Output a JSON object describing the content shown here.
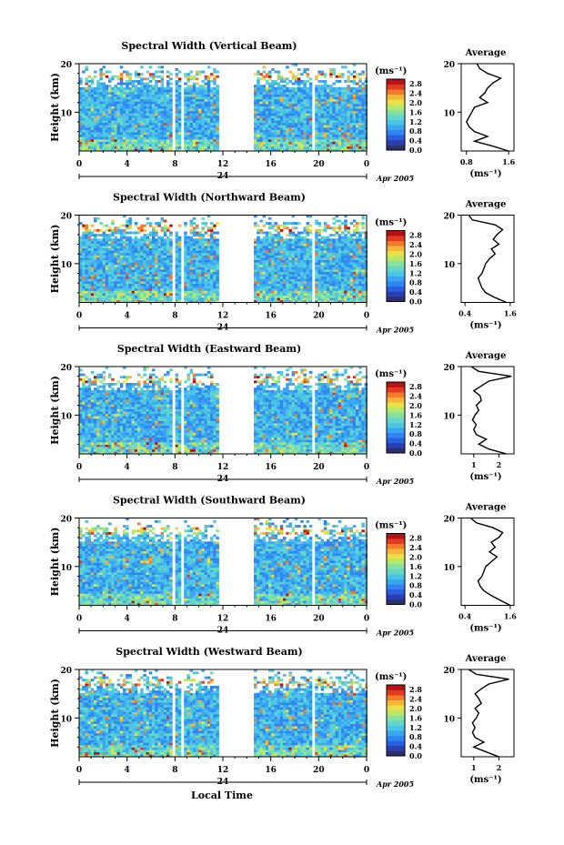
{
  "figure": {
    "xlabel_bottom": "Local Time",
    "cbar_unit": "(ms⁻¹)",
    "avg_unit": "(ms⁻¹)",
    "colors": [
      "#2b2f6e",
      "#2b3fb0",
      "#2a5fe0",
      "#2f86f2",
      "#3aa6f2",
      "#4cc4e6",
      "#63d8c8",
      "#86e0a0",
      "#b6e86e",
      "#e8e24a",
      "#f7b63a",
      "#f57a2a",
      "#e23a1e",
      "#b51212"
    ]
  },
  "chart_data": [
    {
      "type": "heatmap",
      "title": "Spectral Width (Vertical Beam)",
      "ylabel": "Height (km)",
      "x_ticks": [
        "0",
        "4",
        "8",
        "12",
        "16",
        "20",
        "0"
      ],
      "y_ticks": [
        "20",
        "10"
      ],
      "date_marker": "24",
      "date_label": "Apr 2005",
      "xlim": [
        0,
        24
      ],
      "ylim": [
        2,
        20
      ],
      "gaps": [
        [
          7.7,
          7.9
        ],
        [
          8.5,
          8.7
        ],
        [
          11.5,
          14.5
        ],
        [
          19.4,
          19.6
        ],
        [
          20.2,
          20.4
        ]
      ],
      "colorbar": {
        "ticks": [
          "2.8",
          "2.4",
          "2.0",
          "1.6",
          "1.2",
          "0.8",
          "0.4",
          "0.0"
        ],
        "range": [
          0,
          3.0
        ]
      },
      "average": {
        "title": "Average",
        "xticks": [
          "0.8",
          "1.6"
        ],
        "xlim": [
          0.7,
          1.7
        ],
        "yticks": [
          "20",
          "10"
        ],
        "profile": [
          [
            2,
            1.6
          ],
          [
            3,
            1.3
          ],
          [
            4,
            0.95
          ],
          [
            5,
            1.2
          ],
          [
            6,
            0.95
          ],
          [
            7,
            0.85
          ],
          [
            8,
            0.8
          ],
          [
            9,
            0.85
          ],
          [
            10,
            0.9
          ],
          [
            11,
            0.95
          ],
          [
            12,
            1.2
          ],
          [
            13,
            1.05
          ],
          [
            14,
            1.15
          ],
          [
            15,
            1.2
          ],
          [
            16,
            1.3
          ],
          [
            17,
            1.45
          ],
          [
            18,
            1.2
          ],
          [
            19,
            1.05
          ],
          [
            20,
            1.0
          ]
        ]
      }
    },
    {
      "type": "heatmap",
      "title": "Spectral Width (Northward Beam)",
      "ylabel": "Height (km)",
      "x_ticks": [
        "0",
        "4",
        "8",
        "12",
        "16",
        "20",
        "0"
      ],
      "y_ticks": [
        "20",
        "10"
      ],
      "date_marker": "24",
      "date_label": "Apr 2005",
      "xlim": [
        0,
        24
      ],
      "ylim": [
        2,
        20
      ],
      "gaps": [
        [
          7.7,
          7.9
        ],
        [
          8.5,
          8.7
        ],
        [
          11.5,
          14.5
        ],
        [
          19.4,
          19.6
        ],
        [
          20.2,
          20.4
        ]
      ],
      "colorbar": {
        "ticks": [
          "2.8",
          "2.4",
          "2.0",
          "1.6",
          "1.2",
          "0.8",
          "0.4",
          "0.0"
        ],
        "range": [
          0,
          3.0
        ]
      },
      "average": {
        "title": "Average",
        "xticks": [
          "0.4",
          "1.6"
        ],
        "xlim": [
          0.3,
          1.7
        ],
        "yticks": [
          "20",
          "10"
        ],
        "profile": [
          [
            2,
            1.5
          ],
          [
            3,
            1.2
          ],
          [
            4,
            0.95
          ],
          [
            5,
            0.85
          ],
          [
            6,
            0.8
          ],
          [
            7,
            0.75
          ],
          [
            8,
            0.85
          ],
          [
            9,
            0.9
          ],
          [
            10,
            0.95
          ],
          [
            11,
            1.05
          ],
          [
            12,
            1.2
          ],
          [
            13,
            1.1
          ],
          [
            14,
            1.3
          ],
          [
            15,
            1.15
          ],
          [
            16,
            1.25
          ],
          [
            17,
            1.4
          ],
          [
            18,
            1.2
          ],
          [
            19,
            0.6
          ],
          [
            20,
            0.5
          ]
        ]
      }
    },
    {
      "type": "heatmap",
      "title": "Spectral Width (Eastward Beam)",
      "ylabel": "Height (km)",
      "x_ticks": [
        "0",
        "4",
        "8",
        "12",
        "16",
        "20",
        "0"
      ],
      "y_ticks": [
        "20",
        "10"
      ],
      "date_marker": "24",
      "date_label": "Apr 2005",
      "xlim": [
        0,
        24
      ],
      "ylim": [
        2,
        20
      ],
      "gaps": [
        [
          7.7,
          7.9
        ],
        [
          8.5,
          8.7
        ],
        [
          11.5,
          14.5
        ],
        [
          19.4,
          19.6
        ],
        [
          20.2,
          20.4
        ]
      ],
      "colorbar": {
        "ticks": [
          "2.8",
          "2.4",
          "2.0",
          "1.6",
          "1.2",
          "0.8",
          "0.4",
          "0.0"
        ],
        "range": [
          0,
          3.0
        ]
      },
      "average": {
        "title": "Average",
        "xticks": [
          "1",
          "2"
        ],
        "xlim": [
          0.5,
          2.6
        ],
        "yticks": [
          "20",
          "10"
        ],
        "profile": [
          [
            2,
            2.3
          ],
          [
            3,
            1.6
          ],
          [
            4,
            1.2
          ],
          [
            5,
            1.5
          ],
          [
            6,
            1.1
          ],
          [
            7,
            1.0
          ],
          [
            8,
            1.1
          ],
          [
            9,
            0.95
          ],
          [
            10,
            1.05
          ],
          [
            11,
            1.2
          ],
          [
            12,
            1.1
          ],
          [
            13,
            1.3
          ],
          [
            14,
            1.25
          ],
          [
            15,
            1.0
          ],
          [
            16,
            1.3
          ],
          [
            17,
            1.6
          ],
          [
            18,
            2.5
          ],
          [
            19,
            1.2
          ],
          [
            20,
            0.9
          ]
        ]
      }
    },
    {
      "type": "heatmap",
      "title": "Spectral Width (Southward Beam)",
      "ylabel": "Height (km)",
      "x_ticks": [
        "0",
        "4",
        "8",
        "12",
        "16",
        "20",
        "0"
      ],
      "y_ticks": [
        "20",
        "10"
      ],
      "date_marker": "24",
      "date_label": "Apr 2005",
      "xlim": [
        0,
        24
      ],
      "ylim": [
        2,
        20
      ],
      "gaps": [
        [
          7.7,
          7.9
        ],
        [
          8.5,
          8.7
        ],
        [
          11.5,
          14.5
        ],
        [
          19.4,
          19.6
        ],
        [
          20.2,
          20.4
        ]
      ],
      "colorbar": {
        "ticks": [
          "2.8",
          "2.4",
          "2.0",
          "1.6",
          "1.2",
          "0.8",
          "0.4",
          "0.0"
        ],
        "range": [
          0,
          3.0
        ]
      },
      "average": {
        "title": "Average",
        "xticks": [
          "0.4",
          "1.6"
        ],
        "xlim": [
          0.3,
          1.7
        ],
        "yticks": [
          "20",
          "10"
        ],
        "profile": [
          [
            2,
            1.6
          ],
          [
            3,
            1.35
          ],
          [
            4,
            1.1
          ],
          [
            5,
            0.9
          ],
          [
            6,
            0.8
          ],
          [
            7,
            0.75
          ],
          [
            8,
            0.85
          ],
          [
            9,
            0.9
          ],
          [
            10,
            0.95
          ],
          [
            11,
            1.1
          ],
          [
            12,
            1.25
          ],
          [
            13,
            1.05
          ],
          [
            14,
            1.2
          ],
          [
            15,
            1.1
          ],
          [
            16,
            1.3
          ],
          [
            17,
            1.4
          ],
          [
            18,
            1.15
          ],
          [
            19,
            0.7
          ],
          [
            20,
            0.55
          ]
        ]
      }
    },
    {
      "type": "heatmap",
      "title": "Spectral Width (Westward Beam)",
      "ylabel": "Height (km)",
      "x_ticks": [
        "0",
        "4",
        "8",
        "12",
        "16",
        "20",
        "0"
      ],
      "y_ticks": [
        "20",
        "10"
      ],
      "date_marker": "24",
      "date_label": "Apr 2005",
      "xlim": [
        0,
        24
      ],
      "ylim": [
        2,
        20
      ],
      "gaps": [
        [
          7.7,
          7.9
        ],
        [
          8.5,
          8.7
        ],
        [
          11.5,
          14.5
        ],
        [
          19.4,
          19.6
        ],
        [
          20.2,
          20.4
        ]
      ],
      "colorbar": {
        "ticks": [
          "2.8",
          "2.4",
          "2.0",
          "1.6",
          "1.2",
          "0.8",
          "0.4",
          "0.0"
        ],
        "range": [
          0,
          3.0
        ]
      },
      "average": {
        "title": "Average",
        "xticks": [
          "1",
          "2"
        ],
        "xlim": [
          0.5,
          2.6
        ],
        "yticks": [
          "20",
          "10"
        ],
        "profile": [
          [
            2,
            2.0
          ],
          [
            3,
            1.5
          ],
          [
            4,
            1.0
          ],
          [
            5,
            1.4
          ],
          [
            6,
            1.05
          ],
          [
            7,
            0.95
          ],
          [
            8,
            1.05
          ],
          [
            9,
            0.95
          ],
          [
            10,
            1.1
          ],
          [
            11,
            1.2
          ],
          [
            12,
            1.05
          ],
          [
            13,
            1.3
          ],
          [
            14,
            1.2
          ],
          [
            15,
            1.05
          ],
          [
            16,
            1.3
          ],
          [
            17,
            1.6
          ],
          [
            18,
            2.4
          ],
          [
            19,
            1.1
          ],
          [
            20,
            0.8
          ]
        ]
      }
    }
  ]
}
